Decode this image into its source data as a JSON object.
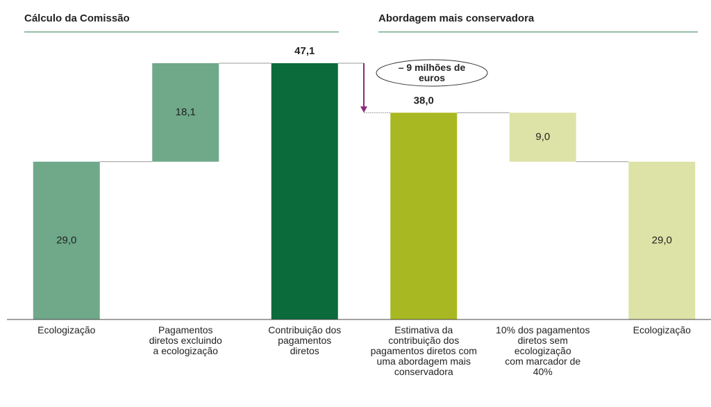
{
  "chart_data": {
    "type": "waterfall",
    "section_titles": [
      "Cálculo da Comissão",
      "Abordagem mais conservadora"
    ],
    "categories": [
      "Ecologização",
      "Pagamentos\ndiretos excluindo\na ecologização",
      "Contribuição dos\npagamentos\ndiretos",
      "Estimativa da\ncontribuição dos\npagamentos diretos com\numa abordagem mais\nconservadora",
      "10% dos pagamentos\ndiretos sem\necologização\ncom marcador de\n40%",
      "Ecologização"
    ],
    "values": [
      29.0,
      18.1,
      47.1,
      38.0,
      9.0,
      29.0
    ],
    "value_labels": [
      "29,0",
      "18,1",
      "47,1",
      "38,0",
      "9,0",
      "29,0"
    ],
    "measures": [
      "absolute",
      "increase",
      "total",
      "total",
      "decrease",
      "absolute"
    ],
    "colors": [
      "#6fa98a",
      "#6fa98a",
      "#0b6b3a",
      "#a8b822",
      "#dde3a6",
      "#dde3a6"
    ],
    "annotation": "– 9 milhões de\neuros"
  }
}
